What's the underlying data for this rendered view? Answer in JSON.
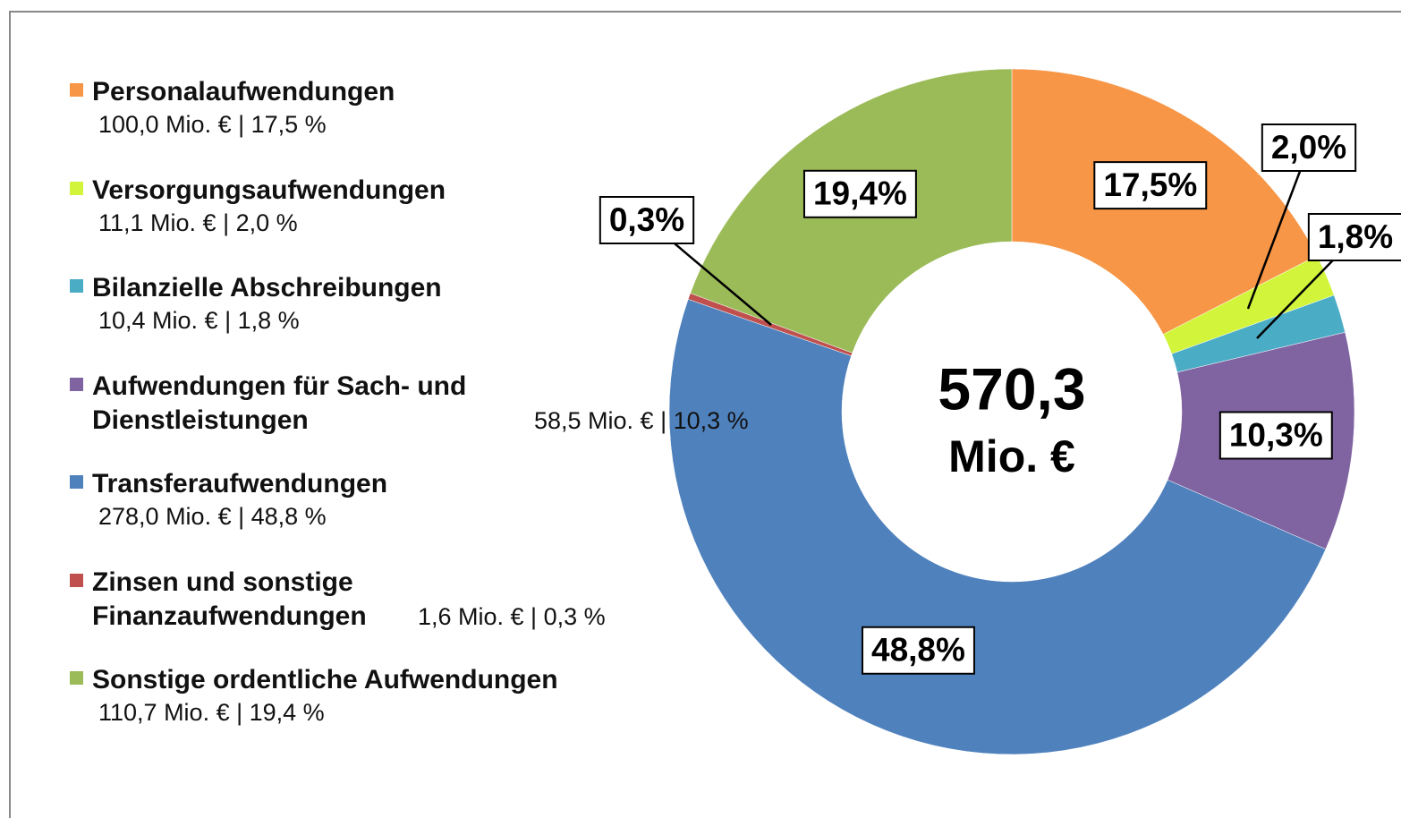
{
  "chart_data": {
    "type": "donut",
    "categories": [
      "Personalaufwendungen",
      "Versorgungsaufwendungen",
      "Bilanzielle Abschreibungen",
      "Aufwendungen für Sach- und Dienstleistungen",
      "Transferaufwendungen",
      "Zinsen und sonstige Finanzaufwendungen",
      "Sonstige ordentliche Aufwendungen"
    ],
    "details": [
      "100,0 Mio. € | 17,5 %",
      "11,1 Mio. € | 2,0 %",
      "10,4 Mio. € | 1,8 %",
      "58,5 Mio. € | 10,3 %",
      "278,0 Mio. € | 48,8 %",
      "1,6 Mio. € | 0,3 %",
      "110,7 Mio. € | 19,4 %"
    ],
    "values": [
      17.5,
      2.0,
      1.8,
      10.3,
      48.8,
      0.3,
      19.4
    ],
    "value_labels": [
      "17,5%",
      "2,0%",
      "1,8%",
      "10,3%",
      "48,8%",
      "0,3%",
      "19,4%"
    ],
    "colors": [
      "#f79646",
      "#d2f53c",
      "#4bacc6",
      "#8064a2",
      "#4f81bd",
      "#c0504d",
      "#9bbb59"
    ],
    "center_value": "570,3",
    "center_unit": "Mio. €"
  }
}
